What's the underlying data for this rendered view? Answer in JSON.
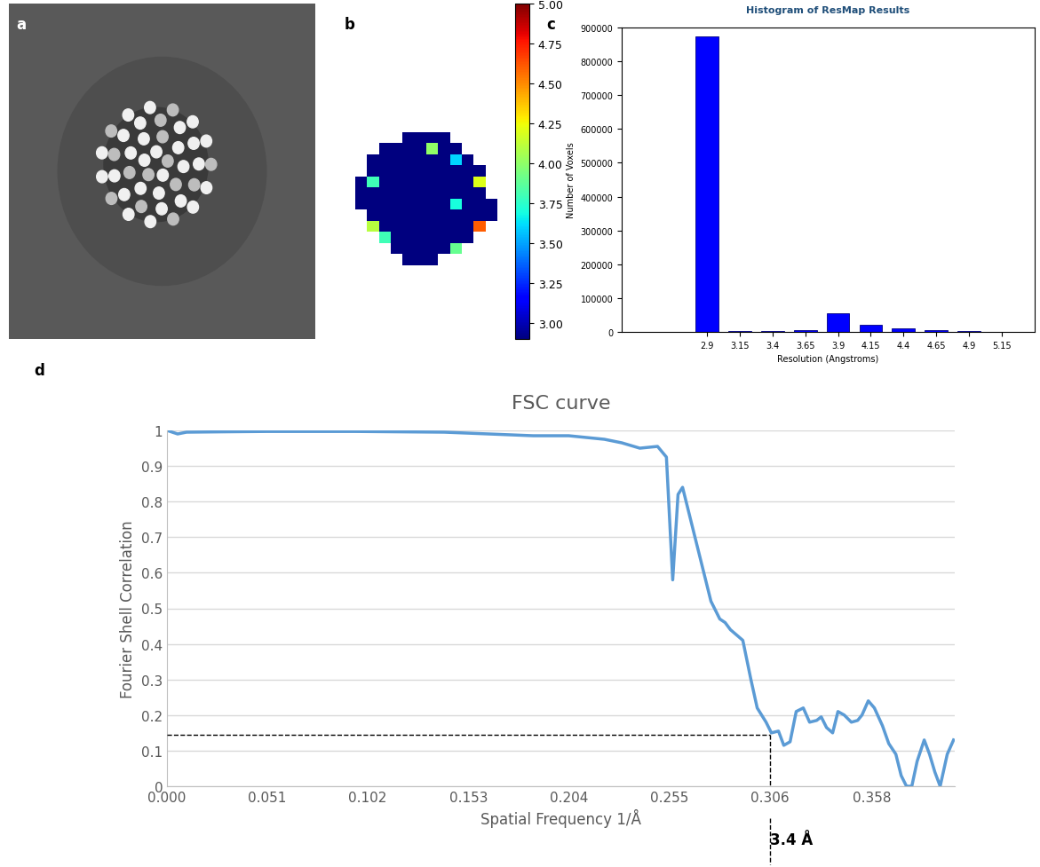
{
  "chart_data": [
    {
      "type": "image",
      "label": "a"
    },
    {
      "type": "heatmap",
      "label": "b",
      "cells": [
        [
          null,
          null,
          null,
          null,
          2.9,
          2.9,
          2.9,
          2.9,
          null,
          null,
          null,
          null
        ],
        [
          null,
          null,
          2.9,
          2.9,
          2.9,
          2.9,
          4.0,
          2.9,
          2.9,
          null,
          null,
          null
        ],
        [
          null,
          2.9,
          2.9,
          2.9,
          2.9,
          2.9,
          2.9,
          2.9,
          3.6,
          2.9,
          null,
          null
        ],
        [
          null,
          2.9,
          2.9,
          2.9,
          2.9,
          2.9,
          2.9,
          2.9,
          2.9,
          2.9,
          2.9,
          null
        ],
        [
          2.9,
          3.8,
          2.9,
          2.9,
          2.9,
          2.9,
          2.9,
          2.9,
          2.9,
          2.9,
          4.2,
          null
        ],
        [
          2.9,
          2.9,
          2.9,
          2.9,
          2.9,
          2.9,
          2.9,
          2.9,
          2.9,
          2.9,
          2.9,
          null
        ],
        [
          2.9,
          2.9,
          2.9,
          2.9,
          2.9,
          2.9,
          2.9,
          2.9,
          3.7,
          2.9,
          2.9,
          2.9
        ],
        [
          null,
          2.9,
          2.9,
          2.9,
          2.9,
          2.9,
          2.9,
          2.9,
          2.9,
          2.9,
          2.9,
          2.9
        ],
        [
          null,
          4.1,
          2.9,
          2.9,
          2.9,
          2.9,
          2.9,
          2.9,
          2.9,
          2.9,
          4.6,
          null
        ],
        [
          null,
          null,
          3.8,
          2.9,
          2.9,
          2.9,
          2.9,
          2.9,
          2.9,
          2.9,
          null,
          null
        ],
        [
          null,
          null,
          null,
          2.9,
          2.9,
          2.9,
          2.9,
          2.9,
          3.9,
          null,
          null,
          null
        ],
        [
          null,
          null,
          null,
          null,
          2.9,
          2.9,
          2.9,
          null,
          null,
          null,
          null,
          null
        ]
      ],
      "colorbar_range": [
        2.9,
        5.0
      ],
      "colorbar_ticks": [
        {
          "value": 3.0,
          "label": "3.00"
        },
        {
          "value": 3.25,
          "label": "3.25"
        },
        {
          "value": 3.5,
          "label": "3.50"
        },
        {
          "value": 3.75,
          "label": "3.75"
        },
        {
          "value": 4.0,
          "label": "4.00"
        },
        {
          "value": 4.25,
          "label": "4.25"
        },
        {
          "value": 4.5,
          "label": "4.50"
        },
        {
          "value": 4.75,
          "label": "4.75"
        },
        {
          "value": 5.0,
          "label": "5.00"
        }
      ]
    },
    {
      "type": "bar",
      "label": "c",
      "title": "Histogram of ResMap Results",
      "x_label": "Resolution (Angstroms)",
      "y_label": "Number of Voxels",
      "categories": [
        "2.9",
        "3.15",
        "3.4",
        "3.65",
        "3.9",
        "4.15",
        "4.4",
        "4.65",
        "4.9",
        "5.15"
      ],
      "values": [
        875000,
        2000,
        1500,
        5000,
        55000,
        22000,
        10000,
        4000,
        1500,
        1000
      ],
      "color": "#0000ff",
      "ylim": [
        0,
        900000
      ],
      "yticks": [
        0,
        100000,
        200000,
        300000,
        400000,
        500000,
        600000,
        700000,
        800000,
        900000
      ]
    },
    {
      "type": "line",
      "label": "d",
      "title": "FSC curve",
      "x_label": "Spatial Frequency 1/Å",
      "y_label": "Fourier Shell Correlation",
      "x": [
        0,
        0.0054,
        0.0099,
        0.028,
        0.0505,
        0.0957,
        0.1408,
        0.1634,
        0.1859,
        0.204,
        0.2221,
        0.231,
        0.2401,
        0.2491,
        0.2536,
        0.2568,
        0.2595,
        0.2618,
        0.2654,
        0.2717,
        0.2762,
        0.2807,
        0.2834,
        0.2861,
        0.2924,
        0.2965,
        0.2997,
        0.3042,
        0.3069,
        0.3105,
        0.3132,
        0.3164,
        0.3195,
        0.3231,
        0.3263,
        0.3299,
        0.3322,
        0.3349,
        0.338,
        0.3407,
        0.3439,
        0.3475,
        0.3507,
        0.3529,
        0.3561,
        0.3592,
        0.3633,
        0.3665,
        0.3701,
        0.3728,
        0.3755,
        0.3782,
        0.3809,
        0.3845,
        0.3872,
        0.3899,
        0.3926,
        0.3962,
        0.3994
      ],
      "values": [
        1.0,
        0.99,
        0.995,
        0.996,
        0.997,
        0.997,
        0.995,
        0.99,
        0.985,
        0.985,
        0.975,
        0.965,
        0.95,
        0.955,
        0.925,
        0.58,
        0.82,
        0.84,
        0.76,
        0.62,
        0.52,
        0.47,
        0.46,
        0.44,
        0.41,
        0.3,
        0.22,
        0.18,
        0.15,
        0.155,
        0.115,
        0.125,
        0.21,
        0.22,
        0.18,
        0.185,
        0.195,
        0.165,
        0.15,
        0.21,
        0.2,
        0.18,
        0.185,
        0.2,
        0.24,
        0.22,
        0.17,
        0.12,
        0.09,
        0.03,
        0.0,
        0.0,
        0.07,
        0.13,
        0.09,
        0.04,
        0.0,
        0.09,
        0.13
      ],
      "color": "#5b9bd5",
      "xlim": [
        0,
        0.4
      ],
      "xticks": [
        {
          "value": 0,
          "label": "0.000"
        },
        0.051,
        0.102,
        0.153,
        0.204,
        0.255,
        0.306,
        0.358
      ],
      "ylim": [
        0,
        1
      ],
      "yticks": [
        0,
        0.1,
        0.2,
        0.3,
        0.4,
        0.5,
        0.6,
        0.7,
        0.8,
        0.9,
        1
      ],
      "grid": true,
      "annotation": {
        "text": "3.4 Å",
        "x": 0.306,
        "y": 0.145
      }
    }
  ]
}
